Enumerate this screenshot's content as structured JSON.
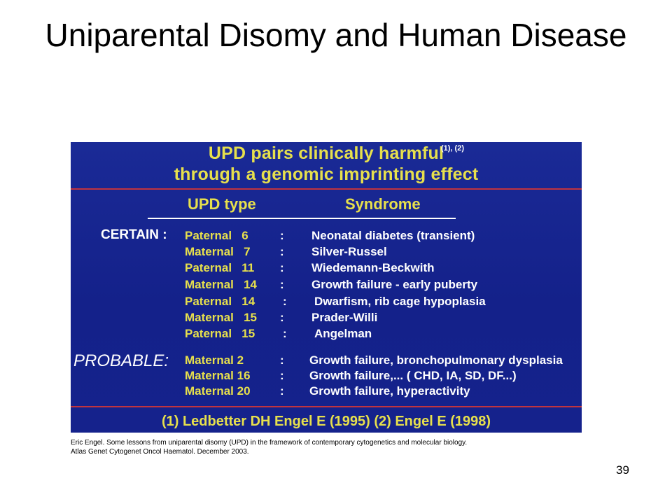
{
  "slide": {
    "title": "Uniparental Disomy and Human Disease",
    "page_number": "39"
  },
  "figure": {
    "heading_line1": "UPD pairs clinically harmful",
    "heading_line2": "through a genomic imprinting effect",
    "heading_sup": "(1), (2)",
    "col_upd": "UPD type",
    "col_syndrome": "Syndrome",
    "certain_label": "CERTAIN :",
    "probable_label": "PROBABLE:",
    "certain_rows": [
      {
        "upd": "Paternal   6",
        "syndrome": "Neonatal diabetes (transient)"
      },
      {
        "upd": "Maternal   7",
        "syndrome": "Silver-Russel"
      },
      {
        "upd": "Paternal   11",
        "syndrome": "Wiedemann-Beckwith"
      },
      {
        "upd": "Maternal   14",
        "syndrome": "Growth failure - early puberty"
      },
      {
        "upd": "Paternal   14",
        "syndrome": "Dwarfism, rib cage hypoplasia"
      },
      {
        "upd": "Maternal   15",
        "syndrome": "Prader-Willi"
      },
      {
        "upd": "Paternal   15",
        "syndrome": "Angelman"
      }
    ],
    "probable_rows": [
      {
        "upd": "Maternal 2",
        "syndrome": "Growth failure, bronchopulmonary dysplasia"
      },
      {
        "upd": "Maternal 16",
        "syndrome": "Growth failure,... ( CHD, IA, SD, DF...)"
      },
      {
        "upd": "Maternal 20",
        "syndrome": "Growth failure, hyperactivity"
      }
    ],
    "colon": ":",
    "references": "(1) Ledbetter DH Engel E (1995)   (2) Engel E (1998)",
    "colors": {
      "background": "#16238a",
      "yellow_text": "#e7e04c",
      "red_rule": "#c0343f"
    }
  },
  "citation": {
    "line1": "Eric Engel. Some lessons from uniparental disomy (UPD) in the framework of contemporary cytogenetics and molecular biology.",
    "line2": "Atlas Genet Cytogenet Oncol Haematol. December 2003."
  }
}
